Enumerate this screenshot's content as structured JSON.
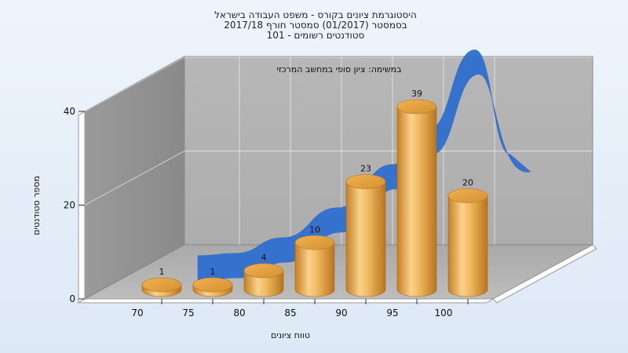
{
  "chart_data": {
    "type": "bar",
    "title_lines": [
      "היסטוגרמת ציונים בקורס - משפט העבודה בישראל",
      "בסמסטר  (01/2017)  סמסטר חורף 2017/18",
      "סטודנטים רשומים - 101"
    ],
    "subtitle": "במשימה: ציון סופי במחשב המרכזי",
    "xlabel": "טווח ציונים",
    "ylabel": "מספר סטודנטים",
    "categories": [
      "70",
      "75",
      "80",
      "85",
      "90",
      "95",
      "100"
    ],
    "bar_categories": [
      "70",
      "75",
      "80",
      "85",
      "90",
      "95",
      "100"
    ],
    "values": [
      1,
      1,
      4,
      10,
      23,
      39,
      20
    ],
    "value_labels": [
      "1",
      "1",
      "4",
      "10",
      "23",
      "39",
      "20"
    ],
    "yticks": [
      "0",
      "20",
      "40"
    ],
    "ylim": [
      0,
      40
    ],
    "style": "3d-cylinder",
    "bar_color": "#e3a446",
    "curve_color": "#2f6fcf",
    "grid": true
  }
}
